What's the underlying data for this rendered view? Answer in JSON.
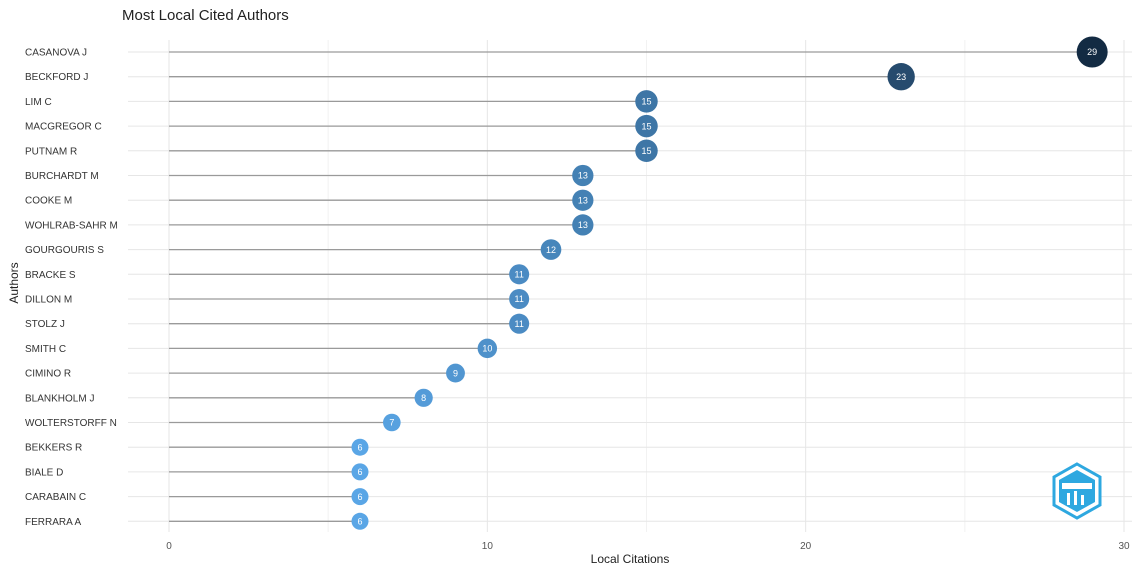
{
  "chart_data": {
    "type": "lollipop",
    "title": "Most Local Cited Authors",
    "xlabel": "Local Citations",
    "ylabel": "Authors",
    "xlim": [
      0,
      30
    ],
    "xticks": [
      0,
      10,
      20,
      30
    ],
    "grid": true,
    "legend": "none",
    "color_low": "#5aa6e6",
    "color_high": "#132b43",
    "categories": [
      "CASANOVA J",
      "BECKFORD J",
      "LIM C",
      "MACGREGOR C",
      "PUTNAM R",
      "BURCHARDT M",
      "COOKE M",
      "WOHLRAB-SAHR M",
      "GOURGOURIS S",
      "BRACKE S",
      "DILLON M",
      "STOLZ J",
      "SMITH C",
      "CIMINO R",
      "BLANKHOLM J",
      "WOLTERSTORFF N",
      "BEKKERS R",
      "BIALE D",
      "CARABAIN C",
      "FERRARA A"
    ],
    "values": [
      29,
      23,
      15,
      15,
      15,
      13,
      13,
      13,
      12,
      11,
      11,
      11,
      10,
      9,
      8,
      7,
      6,
      6,
      6,
      6
    ]
  },
  "logo": {
    "name": "bibliometrix-logo",
    "color": "#2ea8e0"
  }
}
